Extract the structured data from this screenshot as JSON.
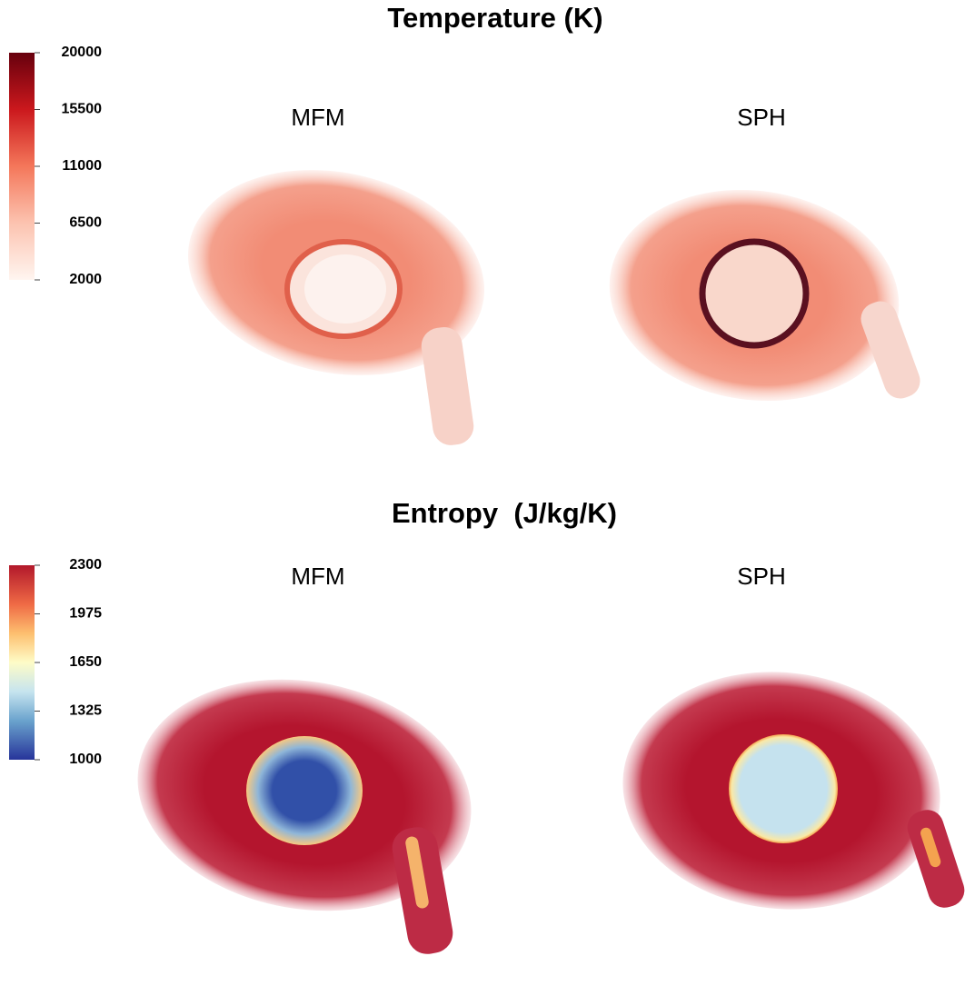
{
  "panels": [
    {
      "title": "Temperature (K)",
      "left_label": "MFM",
      "right_label": "SPH",
      "colorbar": {
        "ticks": [
          20000,
          15500,
          11000,
          6500,
          2000
        ]
      }
    },
    {
      "title": "Entropy  (J/kg/K)",
      "left_label": "MFM",
      "right_label": "SPH",
      "colorbar": {
        "ticks": [
          2300,
          1975,
          1650,
          1325,
          1000
        ]
      }
    }
  ]
}
